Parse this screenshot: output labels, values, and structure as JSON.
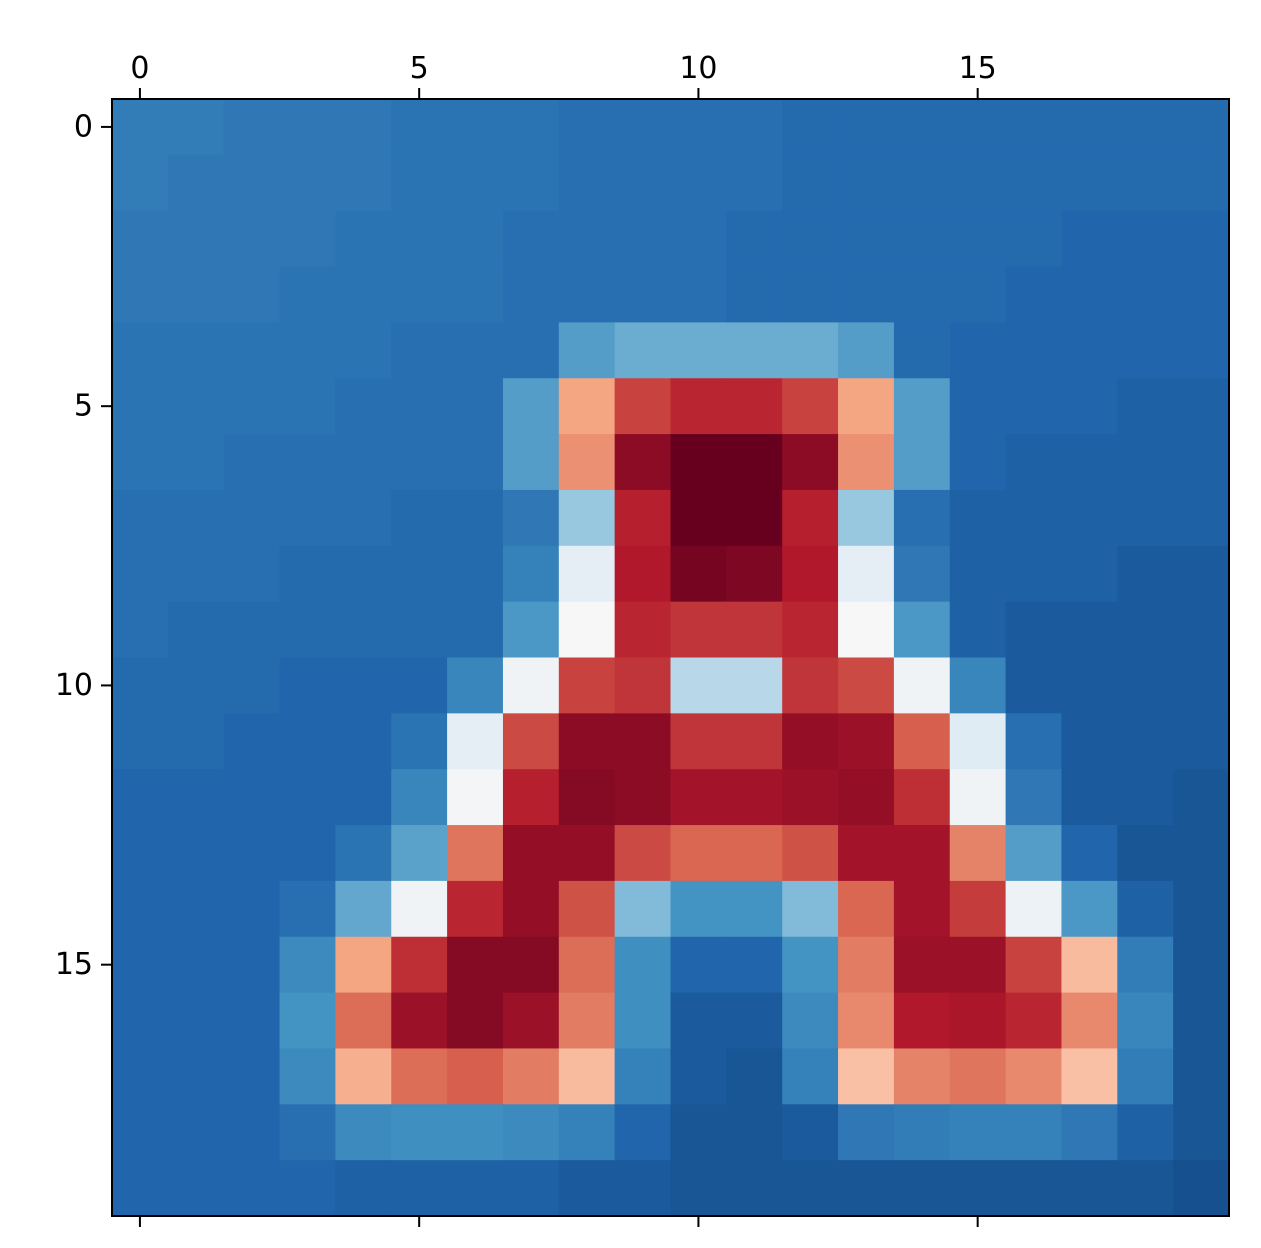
{
  "chart_data": {
    "type": "heatmap",
    "title": "",
    "xlabel": "",
    "ylabel": "",
    "rows": 20,
    "cols": 20,
    "xlim": [
      -0.5,
      19.5
    ],
    "ylim": [
      19.5,
      -0.5
    ],
    "x_ticks": [
      0,
      5,
      10,
      15
    ],
    "y_ticks": [
      0,
      5,
      10,
      15
    ],
    "x_tick_labels": [
      "0",
      "5",
      "10",
      "15"
    ],
    "y_tick_labels": [
      "0",
      "5",
      "10",
      "15"
    ],
    "x_tick_position": "top",
    "grid": false,
    "colormap": "RdBu_r",
    "color_stops": [
      "#053061",
      "#2166ac",
      "#4393c3",
      "#92c5de",
      "#d1e5f0",
      "#f7f7f7",
      "#fddbc7",
      "#f4a582",
      "#d6604d",
      "#b2182b",
      "#67001f"
    ],
    "value_range": [
      0,
      1
    ],
    "values": [
      [
        0.15,
        0.15,
        0.14,
        0.14,
        0.14,
        0.13,
        0.13,
        0.13,
        0.12,
        0.12,
        0.12,
        0.12,
        0.11,
        0.11,
        0.11,
        0.11,
        0.11,
        0.11,
        0.11,
        0.11
      ],
      [
        0.15,
        0.14,
        0.14,
        0.14,
        0.14,
        0.13,
        0.13,
        0.13,
        0.12,
        0.12,
        0.12,
        0.12,
        0.11,
        0.11,
        0.11,
        0.11,
        0.11,
        0.11,
        0.11,
        0.11
      ],
      [
        0.14,
        0.14,
        0.14,
        0.14,
        0.13,
        0.13,
        0.13,
        0.12,
        0.12,
        0.12,
        0.12,
        0.11,
        0.11,
        0.11,
        0.11,
        0.11,
        0.11,
        0.1,
        0.1,
        0.1
      ],
      [
        0.14,
        0.14,
        0.14,
        0.13,
        0.13,
        0.13,
        0.13,
        0.12,
        0.12,
        0.12,
        0.12,
        0.11,
        0.11,
        0.11,
        0.11,
        0.11,
        0.1,
        0.1,
        0.1,
        0.1
      ],
      [
        0.13,
        0.13,
        0.13,
        0.13,
        0.13,
        0.12,
        0.12,
        0.12,
        0.22,
        0.25,
        0.25,
        0.25,
        0.25,
        0.22,
        0.11,
        0.1,
        0.1,
        0.1,
        0.1,
        0.1
      ],
      [
        0.13,
        0.13,
        0.13,
        0.13,
        0.12,
        0.12,
        0.12,
        0.22,
        0.7,
        0.84,
        0.88,
        0.88,
        0.84,
        0.7,
        0.22,
        0.1,
        0.1,
        0.1,
        0.09,
        0.09
      ],
      [
        0.13,
        0.13,
        0.12,
        0.12,
        0.12,
        0.12,
        0.12,
        0.22,
        0.73,
        0.95,
        1.0,
        1.0,
        0.95,
        0.73,
        0.22,
        0.1,
        0.09,
        0.09,
        0.09,
        0.09
      ],
      [
        0.12,
        0.12,
        0.12,
        0.12,
        0.12,
        0.11,
        0.11,
        0.14,
        0.31,
        0.89,
        1.0,
        1.0,
        0.89,
        0.31,
        0.12,
        0.09,
        0.09,
        0.09,
        0.09,
        0.09
      ],
      [
        0.12,
        0.12,
        0.12,
        0.11,
        0.11,
        0.11,
        0.11,
        0.16,
        0.45,
        0.9,
        0.98,
        0.97,
        0.9,
        0.45,
        0.14,
        0.09,
        0.09,
        0.09,
        0.08,
        0.08
      ],
      [
        0.12,
        0.11,
        0.11,
        0.11,
        0.11,
        0.11,
        0.11,
        0.21,
        0.5,
        0.88,
        0.86,
        0.86,
        0.88,
        0.5,
        0.21,
        0.09,
        0.08,
        0.08,
        0.08,
        0.08
      ],
      [
        0.11,
        0.11,
        0.11,
        0.1,
        0.1,
        0.1,
        0.17,
        0.48,
        0.84,
        0.86,
        0.36,
        0.36,
        0.86,
        0.83,
        0.48,
        0.17,
        0.08,
        0.08,
        0.08,
        0.08
      ],
      [
        0.11,
        0.11,
        0.1,
        0.1,
        0.1,
        0.13,
        0.45,
        0.83,
        0.95,
        0.95,
        0.86,
        0.86,
        0.94,
        0.93,
        0.8,
        0.44,
        0.12,
        0.08,
        0.08,
        0.08
      ],
      [
        0.1,
        0.1,
        0.1,
        0.1,
        0.1,
        0.17,
        0.49,
        0.89,
        0.96,
        0.95,
        0.92,
        0.92,
        0.93,
        0.94,
        0.87,
        0.48,
        0.14,
        0.08,
        0.08,
        0.07
      ],
      [
        0.1,
        0.1,
        0.1,
        0.1,
        0.13,
        0.23,
        0.77,
        0.94,
        0.94,
        0.83,
        0.79,
        0.79,
        0.82,
        0.92,
        0.92,
        0.75,
        0.22,
        0.1,
        0.07,
        0.07
      ],
      [
        0.1,
        0.1,
        0.1,
        0.12,
        0.24,
        0.48,
        0.88,
        0.94,
        0.82,
        0.28,
        0.2,
        0.2,
        0.28,
        0.79,
        0.92,
        0.85,
        0.47,
        0.21,
        0.09,
        0.07
      ],
      [
        0.1,
        0.1,
        0.1,
        0.18,
        0.7,
        0.87,
        0.96,
        0.96,
        0.78,
        0.19,
        0.1,
        0.1,
        0.2,
        0.76,
        0.93,
        0.93,
        0.84,
        0.66,
        0.15,
        0.07
      ],
      [
        0.1,
        0.1,
        0.1,
        0.2,
        0.78,
        0.93,
        0.96,
        0.93,
        0.76,
        0.19,
        0.08,
        0.08,
        0.18,
        0.74,
        0.9,
        0.91,
        0.88,
        0.74,
        0.17,
        0.07
      ],
      [
        0.1,
        0.1,
        0.1,
        0.18,
        0.68,
        0.78,
        0.8,
        0.76,
        0.66,
        0.16,
        0.08,
        0.07,
        0.16,
        0.65,
        0.75,
        0.77,
        0.74,
        0.65,
        0.15,
        0.07
      ],
      [
        0.1,
        0.1,
        0.1,
        0.12,
        0.18,
        0.19,
        0.19,
        0.18,
        0.16,
        0.1,
        0.07,
        0.07,
        0.08,
        0.14,
        0.15,
        0.16,
        0.16,
        0.14,
        0.09,
        0.07
      ],
      [
        0.1,
        0.1,
        0.1,
        0.1,
        0.09,
        0.09,
        0.09,
        0.09,
        0.08,
        0.08,
        0.07,
        0.07,
        0.07,
        0.07,
        0.07,
        0.07,
        0.07,
        0.07,
        0.07,
        0.06
      ]
    ]
  }
}
